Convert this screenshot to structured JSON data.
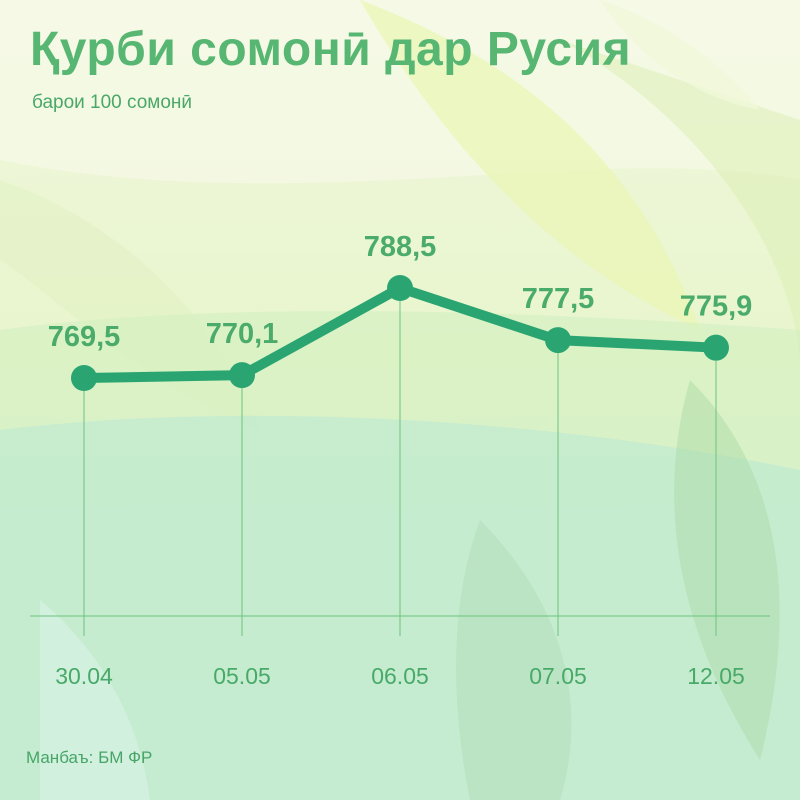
{
  "title": "Қурби сомонӣ дар Русия",
  "subtitle": "барои 100 сомонӣ",
  "source": {
    "label": "Манбаъ:",
    "value": "БМ ФР"
  },
  "colors": {
    "accent": "#2aa572",
    "text": "#4aab6a",
    "gridline": "#6cc47e",
    "background": "#eef7d8"
  },
  "chart_data": {
    "type": "line",
    "title": "Қурби сомонӣ дар Русия",
    "subtitle": "барои 100 сомонӣ",
    "xlabel": "",
    "ylabel": "",
    "categories": [
      "30.04",
      "05.05",
      "06.05",
      "07.05",
      "12.05"
    ],
    "values": [
      769.5,
      770.1,
      788.5,
      777.5,
      775.9
    ],
    "labels": [
      "769,5",
      "770,1",
      "788,5",
      "777,5",
      "775,9"
    ],
    "ylim": [
      730,
      800
    ],
    "grid": "vertical drop lines",
    "legend": "none"
  }
}
